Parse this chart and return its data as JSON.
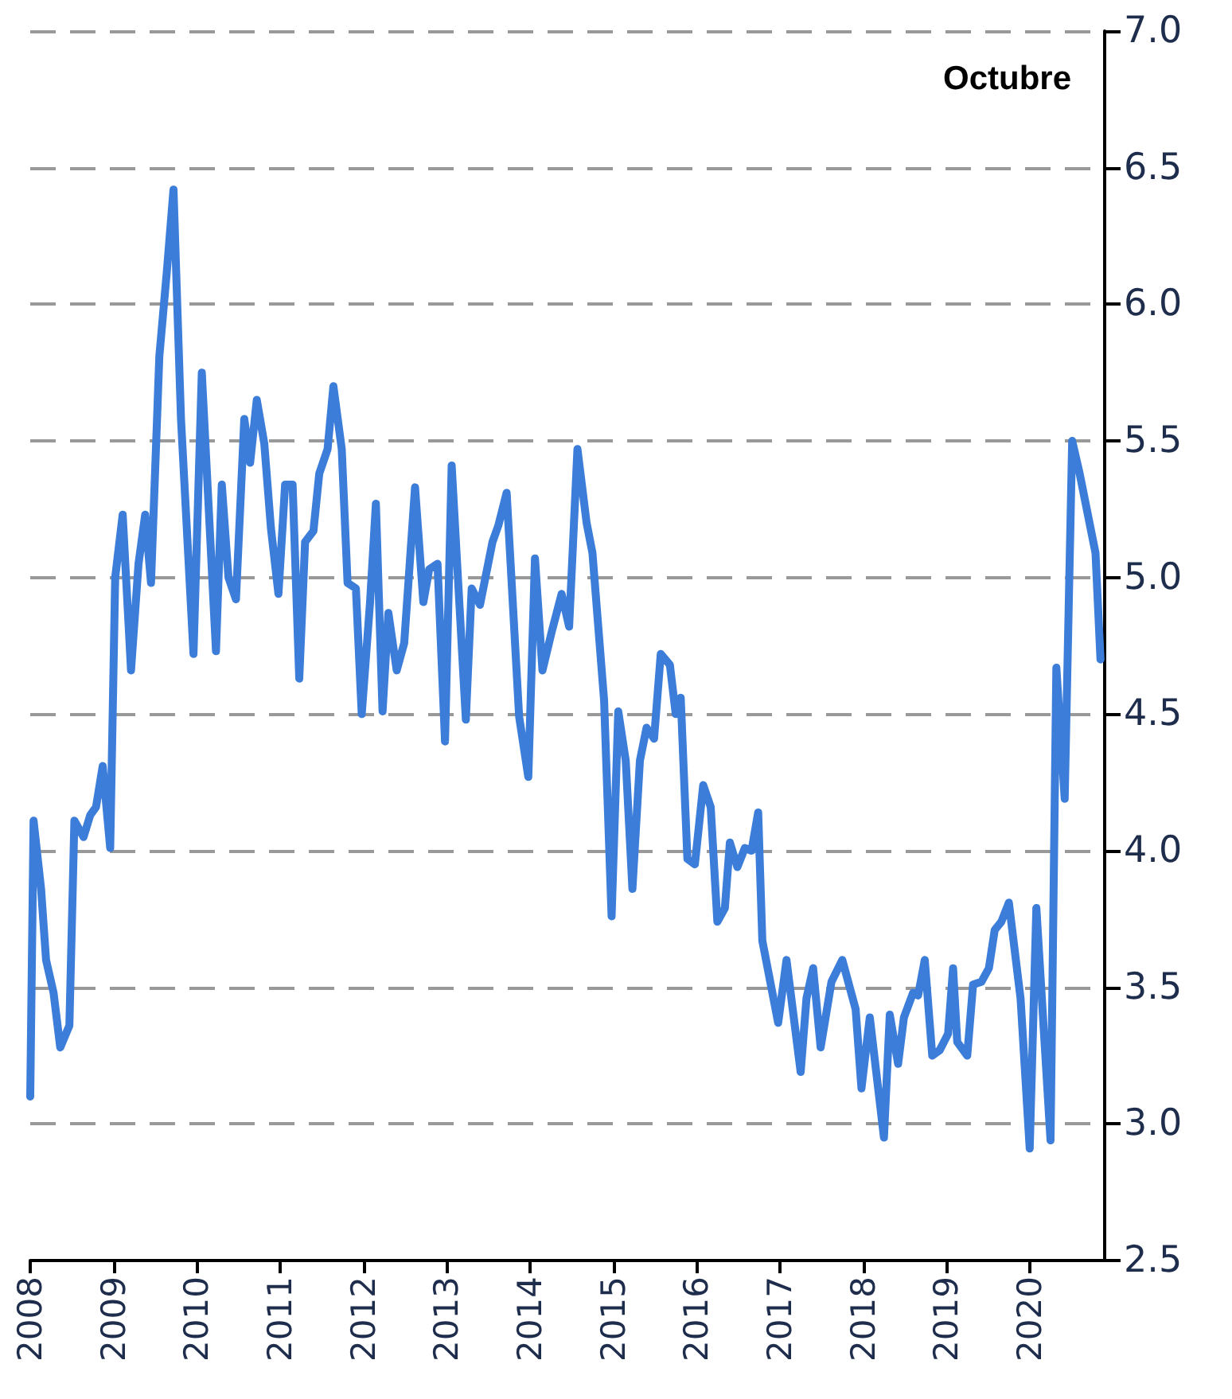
{
  "chart_data": {
    "type": "line",
    "title": "Octubre",
    "x": [
      2008.0,
      2008.04,
      2008.13,
      2008.19,
      2008.28,
      2008.36,
      2008.47,
      2008.53,
      2008.64,
      2008.72,
      2008.79,
      2008.87,
      2008.96,
      2009.02,
      2009.11,
      2009.21,
      2009.3,
      2009.38,
      2009.45,
      2009.55,
      2009.64,
      2009.72,
      2009.81,
      2009.96,
      2010.06,
      2010.23,
      2010.3,
      2010.38,
      2010.47,
      2010.57,
      2010.64,
      2010.72,
      2010.81,
      2010.89,
      2010.98,
      2011.06,
      2011.15,
      2011.23,
      2011.3,
      2011.4,
      2011.47,
      2011.57,
      2011.64,
      2011.74,
      2011.81,
      2011.91,
      2011.98,
      2012.08,
      2012.15,
      2012.23,
      2012.3,
      2012.4,
      2012.49,
      2012.62,
      2012.72,
      2012.79,
      2012.89,
      2012.98,
      2013.06,
      2013.23,
      2013.3,
      2013.4,
      2013.55,
      2013.62,
      2013.72,
      2013.87,
      2013.98,
      2014.06,
      2014.15,
      2014.26,
      2014.38,
      2014.47,
      2014.57,
      2014.68,
      2014.75,
      2014.89,
      2014.98,
      2015.06,
      2015.15,
      2015.23,
      2015.32,
      2015.4,
      2015.49,
      2015.57,
      2015.68,
      2015.75,
      2015.81,
      2015.89,
      2015.98,
      2016.08,
      2016.17,
      2016.25,
      2016.34,
      2016.4,
      2016.49,
      2016.58,
      2016.66,
      2016.74,
      2016.79,
      2016.98,
      2017.08,
      2017.25,
      2017.32,
      2017.4,
      2017.49,
      2017.62,
      2017.75,
      2017.91,
      2017.98,
      2018.08,
      2018.25,
      2018.32,
      2018.42,
      2018.49,
      2018.6,
      2018.66,
      2018.74,
      2018.83,
      2018.92,
      2019.02,
      2019.08,
      2019.13,
      2019.25,
      2019.32,
      2019.42,
      2019.51,
      2019.58,
      2019.66,
      2019.75,
      2019.89,
      2020.0,
      2020.08,
      2020.25,
      2020.32,
      2020.42,
      2020.51,
      2020.6,
      2020.79,
      2020.85
    ],
    "series": [
      {
        "color": "#3c7dd9",
        "values": [
          3.1,
          4.11,
          3.86,
          3.6,
          3.48,
          3.28,
          3.36,
          4.11,
          4.05,
          4.13,
          4.16,
          4.31,
          4.01,
          5.0,
          5.23,
          4.66,
          5.05,
          5.23,
          4.98,
          5.81,
          6.12,
          6.42,
          5.58,
          4.72,
          5.75,
          4.73,
          5.34,
          5.0,
          4.92,
          5.58,
          5.42,
          5.65,
          5.49,
          5.18,
          4.94,
          5.34,
          5.34,
          4.63,
          5.13,
          5.17,
          5.38,
          5.47,
          5.7,
          5.47,
          4.98,
          4.96,
          4.5,
          4.91,
          5.27,
          4.51,
          4.87,
          4.66,
          4.76,
          5.33,
          4.91,
          5.03,
          5.05,
          4.4,
          5.41,
          4.48,
          4.96,
          4.9,
          5.13,
          5.19,
          5.31,
          4.49,
          4.27,
          5.07,
          4.66,
          4.8,
          4.94,
          4.82,
          5.47,
          5.2,
          5.09,
          4.55,
          3.76,
          4.51,
          4.33,
          3.86,
          4.33,
          4.45,
          4.41,
          4.72,
          4.68,
          4.5,
          4.56,
          3.97,
          3.95,
          4.24,
          4.16,
          3.74,
          3.79,
          4.03,
          3.94,
          4.01,
          4.0,
          4.14,
          3.67,
          3.37,
          3.6,
          3.19,
          3.46,
          3.57,
          3.28,
          3.52,
          3.6,
          3.42,
          3.13,
          3.39,
          2.95,
          3.4,
          3.22,
          3.39,
          3.48,
          3.47,
          3.6,
          3.25,
          3.27,
          3.33,
          3.57,
          3.3,
          3.25,
          3.51,
          3.52,
          3.57,
          3.71,
          3.74,
          3.81,
          3.46,
          2.91,
          3.79,
          2.94,
          4.67,
          4.19,
          5.5,
          5.38,
          5.09,
          4.7
        ]
      }
    ],
    "xlim": [
      2008,
      2020.9
    ],
    "xticks": [
      2008,
      2009,
      2010,
      2011,
      2012,
      2013,
      2014,
      2015,
      2016,
      2017,
      2018,
      2019,
      2020
    ],
    "ylim": [
      2.5,
      7.0
    ],
    "yticks": [
      {
        "value": 2.5,
        "label": "2.5"
      },
      {
        "value": 3,
        "label": "3.0"
      },
      {
        "value": 3.5,
        "label": "3.5"
      },
      {
        "value": 4,
        "label": "4.0"
      },
      {
        "value": 4.5,
        "label": "4.5"
      },
      {
        "value": 5,
        "label": "5.0"
      },
      {
        "value": 5.5,
        "label": "5.5"
      },
      {
        "value": 6,
        "label": "6.0"
      },
      {
        "value": 6.5,
        "label": "6.5"
      },
      {
        "value": 7,
        "label": "7.0"
      }
    ],
    "grid": "y",
    "marker": "none",
    "line_style": "solid"
  }
}
